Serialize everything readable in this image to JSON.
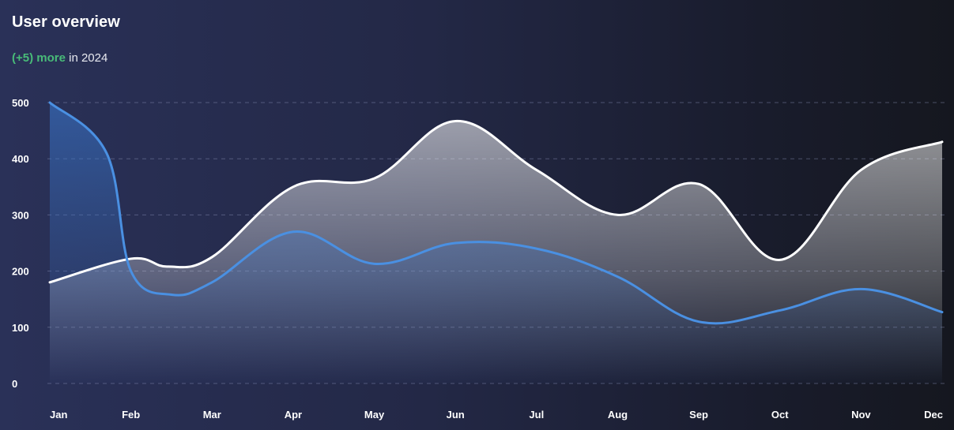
{
  "header": {
    "title": "User overview",
    "subtitle_highlight": "(+5) more",
    "subtitle_rest": "in 2024"
  },
  "colors": {
    "background": "#1f2440",
    "highlight_green": "#48bb78",
    "white_series": "#ffffff",
    "blue_series": "#4a90e2"
  },
  "chart_data": {
    "type": "area",
    "categories": [
      "Jan",
      "Feb",
      "Mar",
      "Apr",
      "May",
      "Jun",
      "Jul",
      "Aug",
      "Sep",
      "Oct",
      "Nov",
      "Dec"
    ],
    "ylim": [
      0,
      500
    ],
    "yticks": [
      0,
      100,
      200,
      300,
      400,
      500
    ],
    "grid": true,
    "series": [
      {
        "color": "#ffffff",
        "points": [
          [
            0,
            180
          ],
          [
            1,
            222
          ],
          [
            1.45,
            208
          ],
          [
            2,
            225
          ],
          [
            3,
            350
          ],
          [
            4,
            365
          ],
          [
            5,
            467
          ],
          [
            6,
            380
          ],
          [
            7,
            300
          ],
          [
            8,
            355
          ],
          [
            9,
            220
          ],
          [
            10,
            380
          ],
          [
            11,
            430
          ]
        ]
      },
      {
        "color": "#4a90e2",
        "points": [
          [
            0,
            500
          ],
          [
            0.7,
            410
          ],
          [
            1,
            200
          ],
          [
            1.5,
            158
          ],
          [
            2,
            180
          ],
          [
            3,
            270
          ],
          [
            4,
            213
          ],
          [
            5,
            250
          ],
          [
            6,
            240
          ],
          [
            7,
            190
          ],
          [
            8,
            110
          ],
          [
            9,
            130
          ],
          [
            10,
            168
          ],
          [
            11,
            127
          ]
        ]
      }
    ]
  }
}
